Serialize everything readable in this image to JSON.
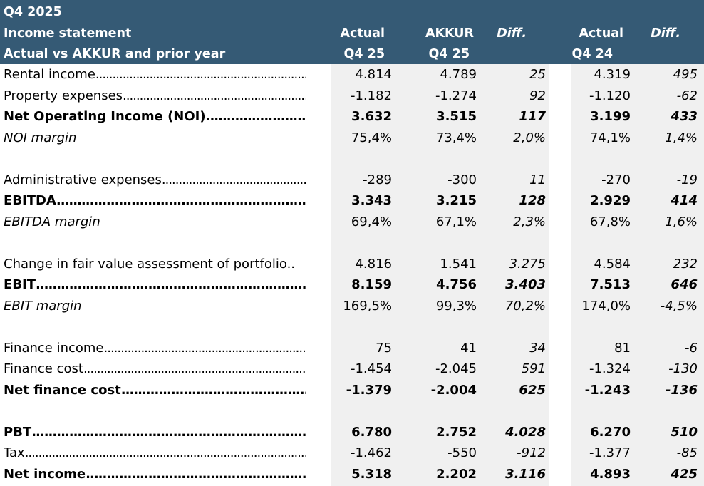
{
  "header": {
    "period": "Q4 2025",
    "title": "Income statement",
    "subtitle": "Actual vs AKKUR and prior year",
    "columns": [
      {
        "top": "Actual",
        "bottom": "Q4 25"
      },
      {
        "top": "AKKUR",
        "bottom": "Q4 25"
      },
      {
        "top": "Diff.",
        "bottom": ""
      },
      {
        "top": "Actual",
        "bottom": "Q4 24"
      },
      {
        "top": "Diff.",
        "bottom": ""
      }
    ]
  },
  "rows": [
    {
      "label": "Rental income",
      "style": "normal",
      "dots": true,
      "values": [
        "4.814",
        "4.789",
        "25",
        "4.319",
        "495"
      ]
    },
    {
      "label": "Property expenses",
      "style": "normal",
      "dots": true,
      "values": [
        "-1.182",
        "-1.274",
        "92",
        "-1.120",
        "-62"
      ]
    },
    {
      "label": "Net Operating Income (NOI)",
      "style": "bold",
      "dots": true,
      "values": [
        "3.632",
        "3.515",
        "117",
        "3.199",
        "433"
      ]
    },
    {
      "label": "NOI margin",
      "style": "italic",
      "dots": false,
      "values": [
        "75,4%",
        "73,4%",
        "2,0%",
        "74,1%",
        "1,4%"
      ]
    },
    {
      "label": "",
      "style": "blank",
      "dots": false,
      "values": [
        "",
        "",
        "",
        "",
        ""
      ]
    },
    {
      "label": "Administrative expenses",
      "style": "normal",
      "dots": true,
      "values": [
        "-289",
        "-300",
        "11",
        "-270",
        "-19"
      ]
    },
    {
      "label": "EBITDA",
      "style": "bold",
      "dots": true,
      "values": [
        "3.343",
        "3.215",
        "128",
        "2.929",
        "414"
      ]
    },
    {
      "label": "EBITDA margin",
      "style": "italic",
      "dots": false,
      "values": [
        "69,4%",
        "67,1%",
        "2,3%",
        "67,8%",
        "1,6%"
      ]
    },
    {
      "label": "",
      "style": "blank",
      "dots": false,
      "values": [
        "",
        "",
        "",
        "",
        ""
      ]
    },
    {
      "label": "Change in fair value assessment of portfolio..",
      "style": "normal",
      "dots": false,
      "values": [
        "4.816",
        "1.541",
        "3.275",
        "4.584",
        "232"
      ]
    },
    {
      "label": "EBIT",
      "style": "bold",
      "dots": true,
      "values": [
        "8.159",
        "4.756",
        "3.403",
        "7.513",
        "646"
      ]
    },
    {
      "label": "EBIT margin",
      "style": "italic",
      "dots": false,
      "values": [
        "169,5%",
        "99,3%",
        "70,2%",
        "174,0%",
        "-4,5%"
      ]
    },
    {
      "label": "",
      "style": "blank",
      "dots": false,
      "values": [
        "",
        "",
        "",
        "",
        ""
      ]
    },
    {
      "label": "Finance income",
      "style": "normal",
      "dots": true,
      "values": [
        "75",
        "41",
        "34",
        "81",
        "-6"
      ]
    },
    {
      "label": "Finance cost",
      "style": "normal",
      "dots": true,
      "values": [
        "-1.454",
        "-2.045",
        "591",
        "-1.324",
        "-130"
      ]
    },
    {
      "label": "Net finance cost",
      "style": "bold",
      "dots": true,
      "values": [
        "-1.379",
        "-2.004",
        "625",
        "-1.243",
        "-136"
      ]
    },
    {
      "label": "",
      "style": "blank",
      "dots": false,
      "values": [
        "",
        "",
        "",
        "",
        ""
      ]
    },
    {
      "label": "PBT",
      "style": "bold",
      "dots": true,
      "values": [
        "6.780",
        "2.752",
        "4.028",
        "6.270",
        "510"
      ]
    },
    {
      "label": "Tax",
      "style": "normal",
      "dots": true,
      "values": [
        "-1.462",
        "-550",
        "-912",
        "-1.377",
        "-85"
      ]
    },
    {
      "label": "Net income",
      "style": "bold",
      "dots": true,
      "values": [
        "5.318",
        "2.202",
        "3.116",
        "4.893",
        "425"
      ]
    }
  ]
}
